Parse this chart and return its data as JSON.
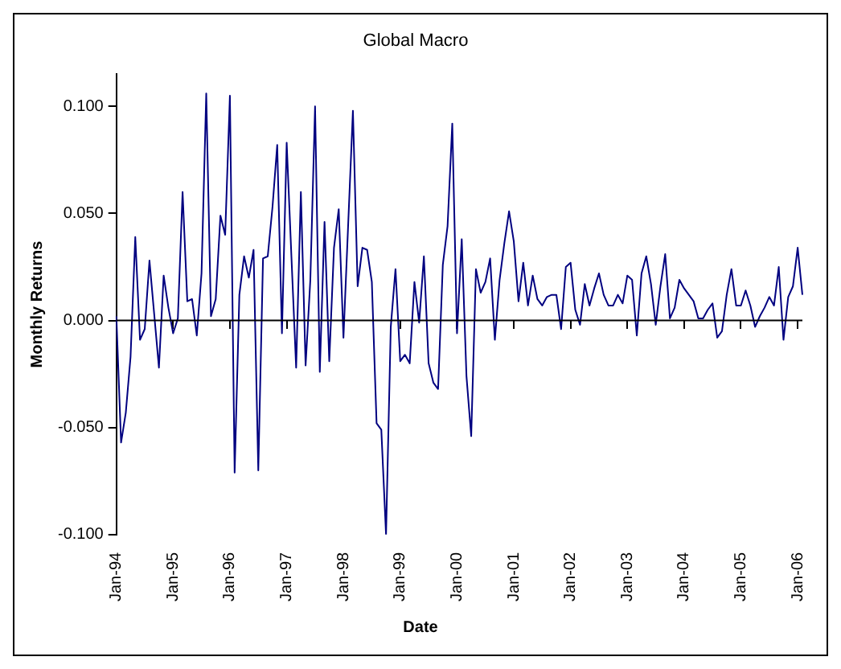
{
  "chart_data": {
    "type": "line",
    "title": "Global Macro",
    "xlabel": "Date",
    "ylabel": "Monthly Returns",
    "categories": [
      "Jan-94",
      null,
      null,
      null,
      null,
      null,
      null,
      null,
      null,
      null,
      null,
      null,
      "Jan-95",
      null,
      null,
      null,
      null,
      null,
      null,
      null,
      null,
      null,
      null,
      null,
      "Jan-96",
      null,
      null,
      null,
      null,
      null,
      null,
      null,
      null,
      null,
      null,
      null,
      "Jan-97",
      null,
      null,
      null,
      null,
      null,
      null,
      null,
      null,
      null,
      null,
      null,
      "Jan-98",
      null,
      null,
      null,
      null,
      null,
      null,
      null,
      null,
      null,
      null,
      null,
      "Jan-99",
      null,
      null,
      null,
      null,
      null,
      null,
      null,
      null,
      null,
      null,
      null,
      "Jan-00",
      null,
      null,
      null,
      null,
      null,
      null,
      null,
      null,
      null,
      null,
      null,
      "Jan-01",
      null,
      null,
      null,
      null,
      null,
      null,
      null,
      null,
      null,
      null,
      null,
      "Jan-02",
      null,
      null,
      null,
      null,
      null,
      null,
      null,
      null,
      null,
      null,
      null,
      "Jan-03",
      null,
      null,
      null,
      null,
      null,
      null,
      null,
      null,
      null,
      null,
      null,
      "Jan-04",
      null,
      null,
      null,
      null,
      null,
      null,
      null,
      null,
      null,
      null,
      null,
      "Jan-05",
      null,
      null,
      null,
      null,
      null,
      null,
      null,
      null,
      null,
      null,
      null,
      "Jan-06",
      null
    ],
    "series": [
      {
        "color": "#000080",
        "values": [
          0.002,
          -0.057,
          -0.043,
          -0.017,
          0.039,
          -0.009,
          -0.004,
          0.028,
          0.003,
          -0.022,
          0.021,
          0.006,
          -0.006,
          0.001,
          0.06,
          0.009,
          0.01,
          -0.007,
          0.022,
          0.106,
          0.002,
          0.01,
          0.049,
          0.04,
          0.105,
          -0.071,
          0.012,
          0.03,
          0.02,
          0.033,
          -0.07,
          0.029,
          0.03,
          0.053,
          0.082,
          -0.006,
          0.083,
          0.03,
          -0.022,
          0.06,
          -0.021,
          0.019,
          0.1,
          -0.024,
          0.046,
          -0.019,
          0.034,
          0.052,
          -0.008,
          0.045,
          0.098,
          0.016,
          0.034,
          0.033,
          0.018,
          -0.048,
          -0.051,
          -0.1,
          -0.003,
          0.024,
          -0.019,
          -0.016,
          -0.02,
          0.018,
          -0.001,
          0.03,
          -0.02,
          -0.029,
          -0.032,
          0.026,
          0.044,
          0.092,
          -0.006,
          0.038,
          -0.026,
          -0.054,
          0.024,
          0.013,
          0.018,
          0.029,
          -0.009,
          0.019,
          0.036,
          0.051,
          0.037,
          0.009,
          0.027,
          0.007,
          0.021,
          0.01,
          0.007,
          0.011,
          0.012,
          0.012,
          -0.004,
          0.025,
          0.027,
          0.005,
          -0.002,
          0.017,
          0.007,
          0.015,
          0.022,
          0.012,
          0.007,
          0.007,
          0.012,
          0.008,
          0.021,
          0.019,
          -0.007,
          0.022,
          0.03,
          0.017,
          -0.002,
          0.016,
          0.031,
          0.001,
          0.006,
          0.019,
          0.015,
          0.012,
          0.009,
          0.001,
          0.001,
          0.005,
          0.008,
          -0.008,
          -0.005,
          0.012,
          0.024,
          0.007,
          0.007,
          0.014,
          0.007,
          -0.003,
          0.002,
          0.006,
          0.011,
          0.007,
          0.025,
          -0.009,
          0.011,
          0.016,
          0.034,
          0.012
        ]
      }
    ],
    "ylim": [
      -0.1,
      0.115
    ],
    "yticks": [
      {
        "value": -0.1,
        "label": "-0.100"
      },
      {
        "value": -0.05,
        "label": "-0.050"
      },
      {
        "value": 0,
        "label": "0.000"
      },
      {
        "value": 0.05,
        "label": "0.050"
      },
      {
        "value": 0.1,
        "label": "0.100"
      }
    ],
    "ref_lines": [
      {
        "axis": "y",
        "value": 0,
        "color": "#000000"
      }
    ],
    "marker": "none",
    "line_style": "solid",
    "grid": false,
    "legend": false
  }
}
